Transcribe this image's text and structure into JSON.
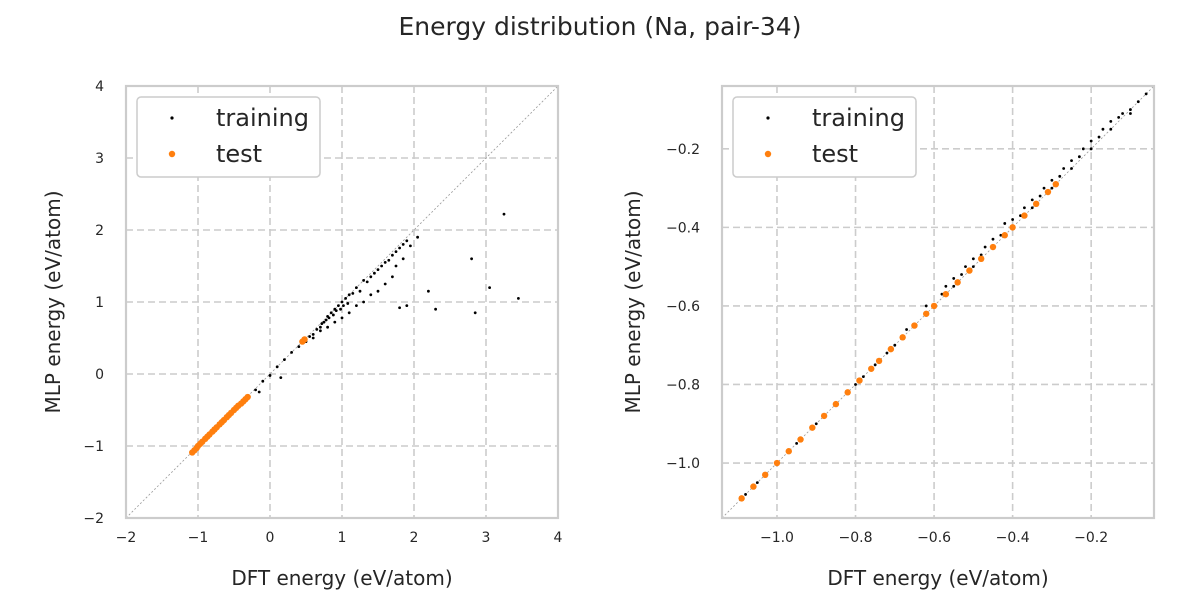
{
  "figure": {
    "title": "Energy distribution (Na, pair-34)",
    "colors": {
      "training": "#000000",
      "test": "#ff7f0e",
      "grid": "#cccccc"
    }
  },
  "chart_data": [
    {
      "type": "scatter",
      "xlabel": "DFT energy (eV/atom)",
      "ylabel": "MLP energy (eV/atom)",
      "xlim": [
        -2,
        4
      ],
      "ylim": [
        -2,
        4
      ],
      "xticks": [
        -2,
        -1,
        0,
        1,
        2,
        3,
        4
      ],
      "yticks": [
        -2,
        -1,
        0,
        1,
        2,
        3,
        4
      ],
      "xtick_labels": [
        "−2",
        "−1",
        "0",
        "1",
        "2",
        "3",
        "4"
      ],
      "ytick_labels": [
        "−2",
        "−1",
        "0",
        "1",
        "2",
        "3",
        "4"
      ],
      "grid": true,
      "diagonal": true,
      "legend_position": "top-left",
      "series": [
        {
          "name": "training",
          "color": "#000000",
          "x": [
            -1.08,
            -1.0,
            -0.9,
            -0.8,
            -0.7,
            -0.6,
            -0.5,
            -0.4,
            -0.3,
            -0.2,
            -0.1,
            0.0,
            0.1,
            0.2,
            0.3,
            0.4,
            0.5,
            0.55,
            0.6,
            0.65,
            0.7,
            0.72,
            0.75,
            0.78,
            0.8,
            0.82,
            0.85,
            0.88,
            0.9,
            0.92,
            0.95,
            0.98,
            1.0,
            1.02,
            1.05,
            1.08,
            1.1,
            1.15,
            1.2,
            1.25,
            1.3,
            1.35,
            1.4,
            1.45,
            1.5,
            1.55,
            1.6,
            1.65,
            1.7,
            1.75,
            1.8,
            1.85,
            1.9,
            0.8,
            0.9,
            1.0,
            1.1,
            1.2,
            1.3,
            1.4,
            1.5,
            1.6,
            1.7,
            1.75,
            1.85,
            0.6,
            0.7,
            1.95,
            2.05,
            2.2,
            2.3,
            2.8,
            2.85,
            3.05,
            3.25,
            3.45,
            1.8,
            1.9,
            0.15,
            -0.15
          ],
          "y": [
            -1.09,
            -1.0,
            -0.9,
            -0.8,
            -0.7,
            -0.6,
            -0.5,
            -0.4,
            -0.3,
            -0.22,
            -0.1,
            -0.02,
            0.1,
            0.2,
            0.3,
            0.38,
            0.45,
            0.52,
            0.55,
            0.62,
            0.65,
            0.7,
            0.72,
            0.75,
            0.8,
            0.78,
            0.85,
            0.82,
            0.9,
            0.88,
            0.95,
            0.9,
            1.0,
            0.95,
            1.05,
            0.98,
            1.1,
            1.12,
            1.2,
            1.15,
            1.3,
            1.28,
            1.35,
            1.4,
            1.45,
            1.5,
            1.55,
            1.58,
            1.65,
            1.7,
            1.75,
            1.8,
            1.85,
            0.65,
            0.72,
            0.78,
            0.85,
            0.95,
            1.0,
            1.1,
            1.15,
            1.25,
            1.35,
            1.5,
            1.6,
            0.5,
            0.6,
            1.78,
            1.9,
            1.15,
            0.9,
            1.6,
            0.85,
            1.2,
            2.22,
            1.05,
            0.92,
            0.95,
            -0.05,
            -0.25
          ]
        },
        {
          "name": "test",
          "color": "#ff7f0e",
          "x": [
            -1.08,
            -1.05,
            -1.02,
            -1.0,
            -0.97,
            -0.94,
            -0.9,
            -0.87,
            -0.84,
            -0.8,
            -0.77,
            -0.74,
            -0.7,
            -0.67,
            -0.64,
            -0.6,
            -0.57,
            -0.54,
            -0.5,
            -0.47,
            -0.44,
            -0.4,
            -0.37,
            -0.34,
            -0.31,
            0.45,
            0.48
          ],
          "y": [
            -1.09,
            -1.06,
            -1.03,
            -1.0,
            -0.97,
            -0.94,
            -0.9,
            -0.87,
            -0.84,
            -0.8,
            -0.77,
            -0.74,
            -0.7,
            -0.67,
            -0.64,
            -0.6,
            -0.57,
            -0.54,
            -0.5,
            -0.47,
            -0.44,
            -0.41,
            -0.38,
            -0.35,
            -0.32,
            0.45,
            0.48
          ]
        }
      ]
    },
    {
      "type": "scatter",
      "xlabel": "DFT energy (eV/atom)",
      "ylabel": "MLP energy (eV/atom)",
      "xlim": [
        -1.14,
        -0.04
      ],
      "ylim": [
        -1.14,
        -0.04
      ],
      "xticks": [
        -1.0,
        -0.8,
        -0.6,
        -0.4,
        -0.2
      ],
      "yticks": [
        -1.0,
        -0.8,
        -0.6,
        -0.4,
        -0.2
      ],
      "xtick_labels": [
        "−1.0",
        "−0.8",
        "−0.6",
        "−0.4",
        "−0.2"
      ],
      "ytick_labels": [
        "−1.0",
        "−0.8",
        "−0.6",
        "−0.4",
        "−0.2"
      ],
      "grid": true,
      "diagonal": true,
      "legend_position": "top-left",
      "series": [
        {
          "name": "training",
          "color": "#000000",
          "x": [
            -1.08,
            -1.05,
            -1.0,
            -0.95,
            -0.9,
            -0.85,
            -0.8,
            -0.78,
            -0.75,
            -0.72,
            -0.7,
            -0.68,
            -0.65,
            -0.62,
            -0.6,
            -0.58,
            -0.55,
            -0.53,
            -0.5,
            -0.48,
            -0.45,
            -0.43,
            -0.4,
            -0.38,
            -0.35,
            -0.33,
            -0.3,
            -0.28,
            -0.25,
            -0.23,
            -0.2,
            -0.18,
            -0.15,
            -0.13,
            -0.1,
            -0.08,
            -0.06,
            -0.55,
            -0.5,
            -0.45,
            -0.4,
            -0.35,
            -0.3,
            -0.25,
            -0.2,
            -0.15,
            -0.1,
            -0.42,
            -0.37,
            -0.32,
            -0.27,
            -0.22,
            -0.17,
            -0.12,
            -0.47,
            -0.52,
            -0.57,
            -0.62,
            -0.67
          ],
          "y": [
            -1.08,
            -1.05,
            -1.0,
            -0.95,
            -0.9,
            -0.85,
            -0.8,
            -0.78,
            -0.75,
            -0.72,
            -0.7,
            -0.68,
            -0.65,
            -0.62,
            -0.6,
            -0.57,
            -0.55,
            -0.52,
            -0.5,
            -0.47,
            -0.45,
            -0.42,
            -0.4,
            -0.37,
            -0.35,
            -0.32,
            -0.3,
            -0.27,
            -0.25,
            -0.22,
            -0.2,
            -0.17,
            -0.15,
            -0.12,
            -0.1,
            -0.08,
            -0.06,
            -0.53,
            -0.48,
            -0.43,
            -0.38,
            -0.33,
            -0.28,
            -0.23,
            -0.18,
            -0.13,
            -0.11,
            -0.39,
            -0.35,
            -0.3,
            -0.25,
            -0.2,
            -0.15,
            -0.11,
            -0.45,
            -0.5,
            -0.55,
            -0.6,
            -0.66
          ]
        },
        {
          "name": "test",
          "color": "#ff7f0e",
          "x": [
            -1.09,
            -1.06,
            -1.03,
            -1.0,
            -0.97,
            -0.94,
            -0.91,
            -0.88,
            -0.85,
            -0.82,
            -0.79,
            -0.76,
            -0.74,
            -0.71,
            -0.68,
            -0.65,
            -0.62,
            -0.6,
            -0.57,
            -0.54,
            -0.51,
            -0.48,
            -0.45,
            -0.42,
            -0.4,
            -0.37,
            -0.34,
            -0.31,
            -0.29
          ],
          "y": [
            -1.09,
            -1.06,
            -1.03,
            -1.0,
            -0.97,
            -0.94,
            -0.91,
            -0.88,
            -0.85,
            -0.82,
            -0.79,
            -0.76,
            -0.74,
            -0.71,
            -0.68,
            -0.65,
            -0.62,
            -0.6,
            -0.57,
            -0.54,
            -0.51,
            -0.48,
            -0.45,
            -0.42,
            -0.4,
            -0.37,
            -0.34,
            -0.31,
            -0.29
          ]
        }
      ]
    }
  ]
}
